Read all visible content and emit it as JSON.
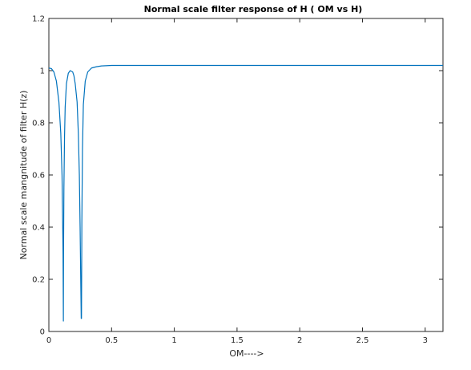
{
  "chart_data": {
    "type": "line",
    "title": "Normal scale filter response of H ( OM vs H)",
    "xlabel": "OM---->",
    "ylabel": "Normal scale mangnitude of filter H(z)",
    "xlim": [
      0,
      3.1416
    ],
    "ylim": [
      0,
      1.2
    ],
    "xticks": [
      0,
      0.5,
      1,
      1.5,
      2,
      2.5,
      3
    ],
    "xtick_labels": [
      "0",
      "0.5",
      "1",
      "1.5",
      "2",
      "2.5",
      "3"
    ],
    "yticks": [
      0,
      0.2,
      0.4,
      0.6,
      0.8,
      1,
      1.2
    ],
    "ytick_labels": [
      "0",
      "0.2",
      "0.4",
      "0.6",
      "0.8",
      "1",
      "1.2"
    ],
    "grid": false,
    "line_color": "#0072bd",
    "series": [
      {
        "x": [
          0,
          0.02,
          0.04,
          0.06,
          0.08,
          0.095,
          0.105,
          0.11,
          0.113,
          0.1157,
          0.117,
          0.12,
          0.125,
          0.13,
          0.14,
          0.155,
          0.17,
          0.19,
          0.2,
          0.21,
          0.225,
          0.235,
          0.243,
          0.249,
          0.254,
          0.258,
          0.26,
          0.263,
          0.268,
          0.275,
          0.29,
          0.31,
          0.34,
          0.38,
          0.42,
          0.5,
          0.7,
          1,
          1.5,
          2,
          2.5,
          3,
          3.1416
        ],
        "y": [
          1.01,
          1.008,
          0.995,
          0.96,
          0.88,
          0.76,
          0.6,
          0.42,
          0.3,
          0.04,
          0.3,
          0.55,
          0.75,
          0.86,
          0.95,
          0.99,
          1.0,
          0.995,
          0.98,
          0.95,
          0.88,
          0.76,
          0.6,
          0.4,
          0.2,
          0.05,
          0.05,
          0.42,
          0.7,
          0.87,
          0.96,
          0.995,
          1.01,
          1.015,
          1.018,
          1.02,
          1.02,
          1.02,
          1.02,
          1.02,
          1.02,
          1.02,
          1.02
        ]
      }
    ]
  }
}
